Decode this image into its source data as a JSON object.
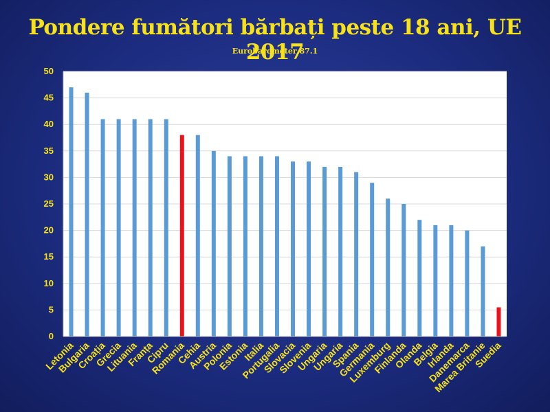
{
  "chart_data": {
    "type": "bar",
    "title": "Pondere fumători bărbați peste 18 ani, UE 2017",
    "subtitle": "Eurobarometer 87.1",
    "categories": [
      "Letonia",
      "Bulgaria",
      "Croația",
      "Grecia",
      "Lituania",
      "Franța",
      "Cipru",
      "Romania",
      "Cehia",
      "Austria",
      "Polonia",
      "Estonia",
      "Italia",
      "Portugalia",
      "Slovacia",
      "Slovenia",
      "Ungaria",
      "Ungaria",
      "Spania",
      "Germania",
      "Luxemburg",
      "Finlanda",
      "Olanda",
      "Belgia",
      "Irlanda",
      "Danemarca",
      "Marea Britanie",
      "Suedia"
    ],
    "values": [
      47,
      46,
      41,
      41,
      41,
      41,
      41,
      38,
      38,
      35,
      34,
      34,
      34,
      34,
      33,
      33,
      32,
      32,
      31,
      29,
      26,
      25,
      22,
      21,
      21,
      20,
      17,
      5.5
    ],
    "highlighted": [
      "Romania",
      "Suedia"
    ],
    "ylim": [
      0,
      50
    ],
    "yticks": [
      0,
      5,
      10,
      15,
      20,
      25,
      30,
      35,
      40,
      45,
      50
    ],
    "grid": true,
    "colors": {
      "bar": "#5b9bd5",
      "highlight": "#e8141b",
      "text": "#f7e21a",
      "plot_bg": "#ffffff",
      "grid": "#d9d9d9"
    }
  }
}
